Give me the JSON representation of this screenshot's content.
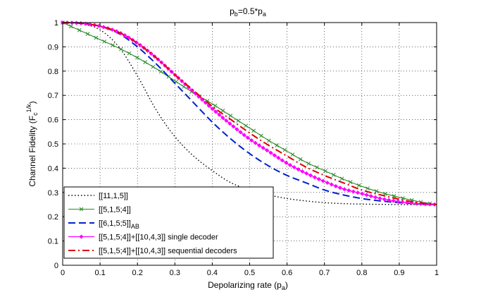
{
  "chart_data": {
    "type": "line",
    "title": {
      "main": "p",
      "sub1": "b",
      "mid": "=0.5*p",
      "sub2": "a"
    },
    "xlabel": {
      "main": "Depolarizing rate (p",
      "sub": "a",
      "tail": ")"
    },
    "ylabel": {
      "main": "Channel Fidelity (F",
      "sub": "c",
      "sup": "1/k",
      "tail": ")"
    },
    "xlim": [
      0,
      1
    ],
    "ylim": [
      0,
      1
    ],
    "grid": true,
    "legend_position": "bottom-left",
    "xticks": [
      "0",
      "0.1",
      "0.2",
      "0.3",
      "0.4",
      "0.5",
      "0.6",
      "0.7",
      "0.8",
      "0.9",
      "1"
    ],
    "yticks": [
      "0",
      "0.1",
      "0.2",
      "0.3",
      "0.4",
      "0.5",
      "0.6",
      "0.7",
      "0.8",
      "0.9",
      "1"
    ],
    "x": [
      0,
      0.05,
      0.1,
      0.15,
      0.2,
      0.25,
      0.3,
      0.35,
      0.4,
      0.45,
      0.5,
      0.55,
      0.6,
      0.65,
      0.7,
      0.75,
      0.8,
      0.85,
      0.9,
      0.95,
      1.0
    ],
    "series": [
      {
        "name": "[[11,1,5]]",
        "name_sub": "",
        "name_tail": "",
        "color": "#000000",
        "dash": "1.5 3",
        "width": 1.4,
        "marker": "none",
        "values": [
          1.0,
          0.995,
          0.97,
          0.9,
          0.78,
          0.64,
          0.53,
          0.45,
          0.39,
          0.34,
          0.31,
          0.29,
          0.275,
          0.265,
          0.258,
          0.254,
          0.252,
          0.251,
          0.25,
          0.25,
          0.25
        ]
      },
      {
        "name": "[[5,1,5;4]]",
        "name_sub": "",
        "name_tail": "",
        "color": "#2a8a2a",
        "dash": "",
        "width": 1.1,
        "marker": "x",
        "values": [
          1.0,
          0.965,
          0.93,
          0.895,
          0.855,
          0.81,
          0.76,
          0.71,
          0.665,
          0.615,
          0.565,
          0.515,
          0.47,
          0.425,
          0.39,
          0.355,
          0.325,
          0.3,
          0.28,
          0.263,
          0.25
        ]
      },
      {
        "name": "[[6,1,5;5]]",
        "name_sub": "AB",
        "name_tail": "",
        "color": "#0022cc",
        "dash": "10 5",
        "width": 2.0,
        "marker": "none",
        "values": [
          1.0,
          0.998,
          0.985,
          0.955,
          0.9,
          0.83,
          0.75,
          0.67,
          0.59,
          0.52,
          0.46,
          0.41,
          0.37,
          0.34,
          0.31,
          0.29,
          0.275,
          0.265,
          0.258,
          0.253,
          0.25
        ]
      },
      {
        "name": "[[5,1,5;4]]+[[10,4,3]] single decoder",
        "name_sub": "",
        "name_tail": "",
        "color": "#ff00ff",
        "dash": "",
        "width": 1.3,
        "marker": "diamond",
        "values": [
          1.0,
          0.997,
          0.985,
          0.96,
          0.915,
          0.855,
          0.785,
          0.715,
          0.645,
          0.58,
          0.52,
          0.47,
          0.42,
          0.38,
          0.345,
          0.315,
          0.295,
          0.275,
          0.262,
          0.254,
          0.25
        ]
      },
      {
        "name": "[[5,1,5;4]]+[[10,4,3]] sequential decoders",
        "name_sub": "",
        "name_tail": "",
        "color": "#dd0000",
        "dash": "10 4 2 4",
        "width": 2.0,
        "marker": "none",
        "values": [
          1.0,
          0.997,
          0.985,
          0.96,
          0.915,
          0.855,
          0.785,
          0.72,
          0.655,
          0.6,
          0.545,
          0.495,
          0.45,
          0.405,
          0.37,
          0.34,
          0.31,
          0.29,
          0.272,
          0.258,
          0.25
        ]
      }
    ]
  }
}
